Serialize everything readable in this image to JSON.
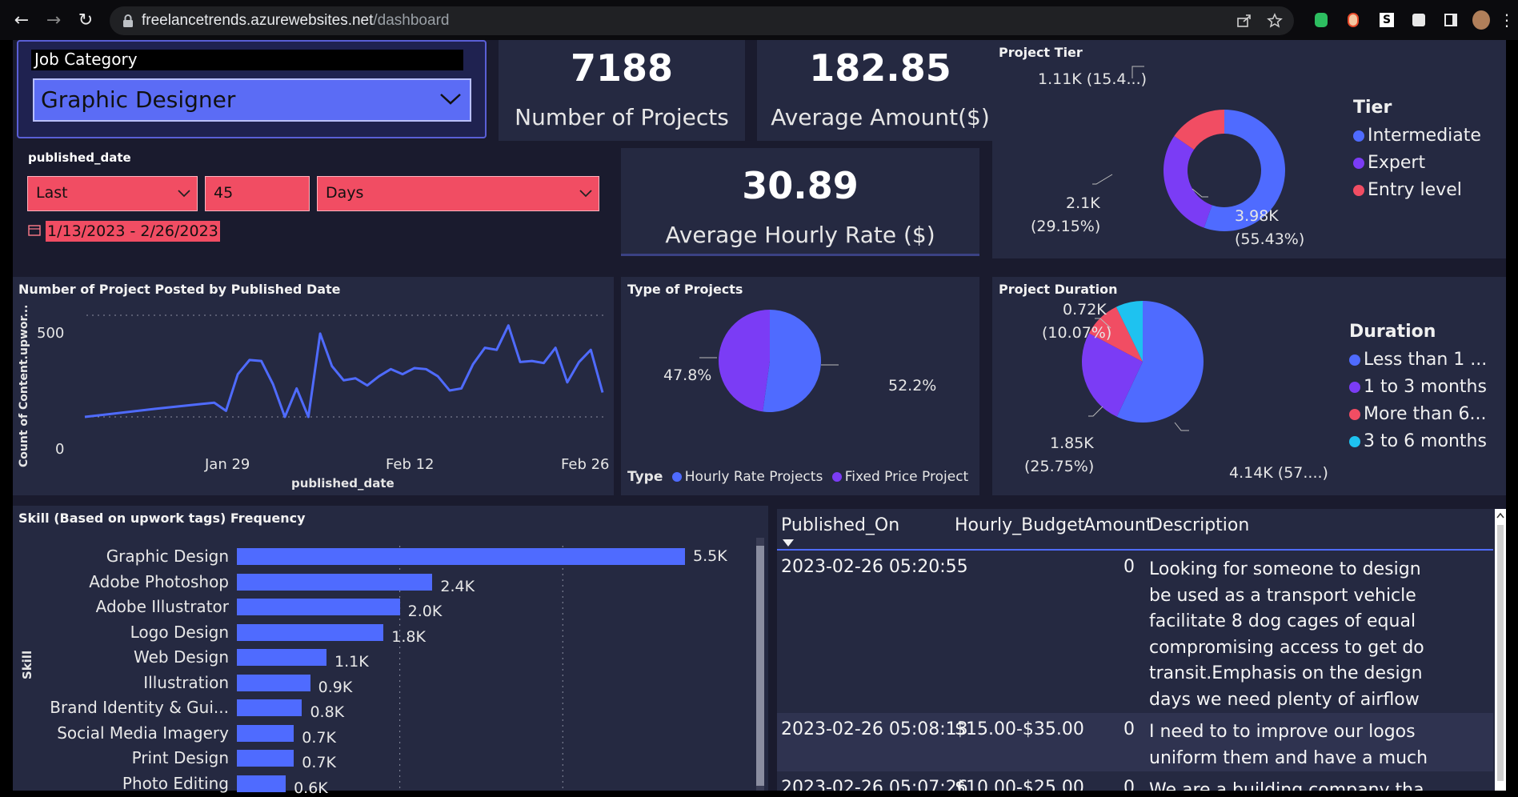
{
  "browser": {
    "url_host": "freelancetrends.azurewebsites.net",
    "url_path": "/dashboard"
  },
  "job_category": {
    "title": "Job Category",
    "selected": "Graphic Designer"
  },
  "date_filter": {
    "title": "published_date",
    "mode": "Last",
    "count": "45",
    "unit": "Days",
    "range": "1/13/2023 - 2/26/2023"
  },
  "kpis": {
    "projects": {
      "value": "7188",
      "label": "Number of Projects"
    },
    "avg_amount": {
      "value": "182.85",
      "label": "Average Amount($)"
    },
    "avg_hourly": {
      "value": "30.89",
      "label": "Average Hourly Rate ($)"
    }
  },
  "colors": {
    "blue": "#4f6bff",
    "purple": "#7b3cf5",
    "red": "#f14d63",
    "cyan": "#1ec2f0"
  },
  "project_tier": {
    "title": "Project Tier",
    "legend_title": "Tier",
    "legend": [
      "Intermediate",
      "Expert",
      "Entry level"
    ],
    "labels": {
      "intermediate": [
        "3.98K",
        "(55.43%)"
      ],
      "expert": [
        "2.1K",
        "(29.15%)"
      ],
      "entry": "1.11K (15.4...)"
    }
  },
  "type_of_projects": {
    "title": "Type of Projects",
    "legend_title": "Type",
    "legend": [
      "Hourly Rate Projects",
      "Fixed Price Project"
    ],
    "labels": {
      "hourly": "52.2%",
      "fixed": "47.8%"
    }
  },
  "project_duration": {
    "title": "Project Duration",
    "legend_title": "Duration",
    "legend": [
      "Less than 1 ...",
      "1 to 3 months",
      "More than 6...",
      "3 to 6 months"
    ],
    "labels": {
      "less1": "4.14K (57....)",
      "one3": [
        "1.85K",
        "(25.75%)"
      ],
      "more6": [
        "0.72K",
        "(10.07%)"
      ]
    }
  },
  "line_chart": {
    "title": "Number of Project Posted by Published Date",
    "xlabel": "published_date",
    "ylabel": "Count of Content.upwor...",
    "xticks": [
      "Jan 29",
      "Feb 12",
      "Feb 26"
    ],
    "yticks": [
      "500",
      "0"
    ]
  },
  "skills_chart": {
    "title": "Skill (Based on upwork tags) Frequency",
    "ylabel": "Skill",
    "categories": [
      "Graphic Design",
      "Adobe Photoshop",
      "Adobe Illustrator",
      "Logo Design",
      "Web Design",
      "Illustration",
      "Brand Identity & Gui...",
      "Social Media Imagery",
      "Print Design",
      "Photo Editing"
    ],
    "labels": [
      "5.5K",
      "2.4K",
      "2.0K",
      "1.8K",
      "1.1K",
      "0.9K",
      "0.8K",
      "0.7K",
      "0.7K",
      "0.6K"
    ]
  },
  "chart_data": [
    {
      "type": "line",
      "title": "Number of Project Posted by Published Date",
      "xlabel": "published_date",
      "ylabel": "Count of Content.upwor...",
      "x": [
        "2023-01-13",
        "2023-01-19",
        "2023-01-24",
        "2023-01-25",
        "2023-01-26",
        "2023-01-27",
        "2023-01-28",
        "2023-01-29",
        "2023-01-30",
        "2023-01-31",
        "2023-02-01",
        "2023-02-02",
        "2023-02-03",
        "2023-02-04",
        "2023-02-05",
        "2023-02-06",
        "2023-02-07",
        "2023-02-08",
        "2023-02-09",
        "2023-02-10",
        "2023-02-11",
        "2023-02-12",
        "2023-02-13",
        "2023-02-14",
        "2023-02-15",
        "2023-02-16",
        "2023-02-17",
        "2023-02-18",
        "2023-02-19",
        "2023-02-20",
        "2023-02-21",
        "2023-02-22",
        "2023-02-23",
        "2023-02-24",
        "2023-02-25",
        "2023-02-26"
      ],
      "y": [
        0,
        40,
        70,
        30,
        210,
        280,
        275,
        160,
        0,
        140,
        0,
        410,
        250,
        180,
        190,
        155,
        200,
        235,
        210,
        240,
        235,
        200,
        130,
        140,
        260,
        340,
        330,
        450,
        270,
        275,
        265,
        340,
        170,
        270,
        330,
        120
      ],
      "ylim": [
        0,
        550
      ]
    },
    {
      "type": "pie",
      "title": "Project Tier",
      "categories": [
        "Intermediate",
        "Expert",
        "Entry level"
      ],
      "values": [
        55.43,
        29.15,
        15.42
      ],
      "counts": [
        "3.98K",
        "2.1K",
        "1.11K"
      ],
      "style": "donut"
    },
    {
      "type": "pie",
      "title": "Type of Projects",
      "categories": [
        "Hourly Rate Projects",
        "Fixed Price Project"
      ],
      "values": [
        52.2,
        47.8
      ]
    },
    {
      "type": "pie",
      "title": "Project Duration",
      "categories": [
        "Less than 1 ...",
        "1 to 3 months",
        "More than 6...",
        "3 to 6 months"
      ],
      "values": [
        57.0,
        25.75,
        10.07,
        7.18
      ],
      "counts": [
        "4.14K",
        "1.85K",
        "0.72K",
        ""
      ]
    },
    {
      "type": "bar",
      "title": "Skill (Based on upwork tags) Frequency",
      "categories": [
        "Graphic Design",
        "Adobe Photoshop",
        "Adobe Illustrator",
        "Logo Design",
        "Web Design",
        "Illustration",
        "Brand Identity & Gui...",
        "Social Media Imagery",
        "Print Design",
        "Photo Editing"
      ],
      "values": [
        5500,
        2400,
        2000,
        1800,
        1100,
        900,
        800,
        700,
        700,
        600
      ],
      "orientation": "horizontal"
    }
  ],
  "table": {
    "columns": [
      "Published_On",
      "Hourly_Budget",
      "Amount",
      "Description"
    ],
    "rows": [
      {
        "published": "2023-02-26 05:20:55",
        "budget": "",
        "amount": "0",
        "desc": [
          "Looking for someone to design",
          "be used as a transport vehicle",
          "facilitate 8 dog cages of equal",
          "compromising access to get do",
          "transit.Emphasis on the design",
          "days we need plenty of airflow"
        ]
      },
      {
        "published": "2023-02-26 05:08:13",
        "budget": "$15.00-$35.00",
        "amount": "0",
        "desc": [
          "I need to to improve our logos",
          "uniform them and have a much"
        ]
      },
      {
        "published": "2023-02-26 05:07:26",
        "budget": "$10.00-$25.00",
        "amount": "0",
        "desc": [
          "We are a building company tha"
        ]
      }
    ]
  }
}
